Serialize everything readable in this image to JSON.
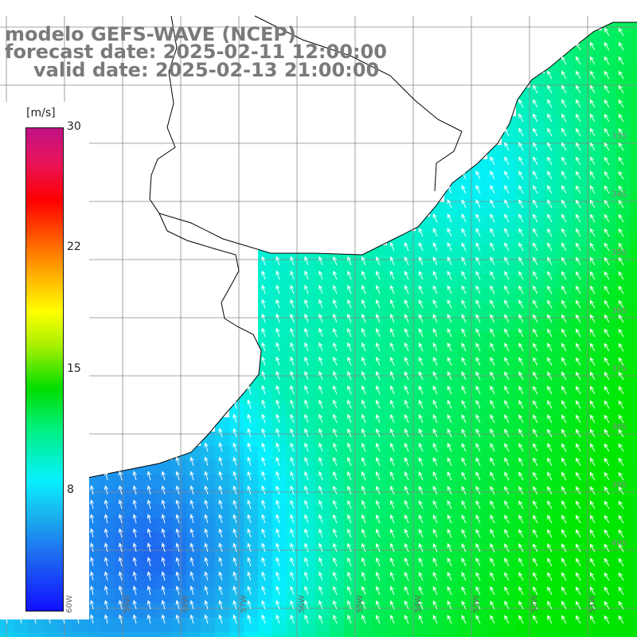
{
  "title": {
    "model": "modelo GEFS-WAVE (NCEP)",
    "forecast": "forecast date: 2025-02-11 12:00:00",
    "valid": "valid date: 2025-02-13 21:00:00"
  },
  "colorbar": {
    "unit": "[m/s]",
    "min": 0,
    "max": 30,
    "ticks": [
      "30",
      "22",
      "15",
      "8"
    ],
    "tick_values": [
      30,
      22,
      15,
      8
    ],
    "colors": [
      "#1010ff",
      "#1e6ff0",
      "#19b4ee",
      "#06f0ff",
      "#00f07a",
      "#00dd00",
      "#aaf000",
      "#ffff00",
      "#ffaa00",
      "#ff5000",
      "#ff0000",
      "#c01284"
    ]
  },
  "map": {
    "lat_labels": [
      "33S",
      "34S",
      "35S",
      "36S",
      "37S",
      "38S",
      "39S",
      "40S"
    ],
    "lon_labels": [
      "60W",
      "59W",
      "58W",
      "57W",
      "56W",
      "55W",
      "54W",
      "53W",
      "52W",
      "51W"
    ],
    "land_color": "#ffffff",
    "coast_color": "#000000",
    "grid_color": "#888888",
    "arrow_color": "#ffffff"
  }
}
